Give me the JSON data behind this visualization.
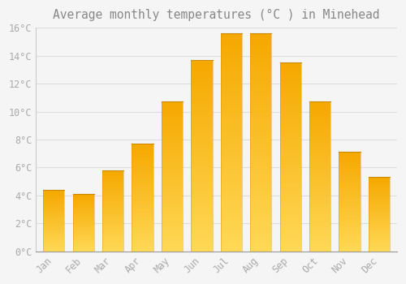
{
  "title": "Average monthly temperatures (°C ) in Minehead",
  "months": [
    "Jan",
    "Feb",
    "Mar",
    "Apr",
    "May",
    "Jun",
    "Jul",
    "Aug",
    "Sep",
    "Oct",
    "Nov",
    "Dec"
  ],
  "values": [
    4.4,
    4.1,
    5.8,
    7.7,
    10.7,
    13.7,
    15.6,
    15.6,
    13.5,
    10.7,
    7.1,
    5.3
  ],
  "bar_color_top": "#F5A800",
  "bar_color_bottom": "#FFD855",
  "background_color": "#F5F5F5",
  "grid_color": "#DDDDDD",
  "text_color": "#AAAAAA",
  "title_color": "#888888",
  "ylim": [
    0,
    16
  ],
  "yticks": [
    0,
    2,
    4,
    6,
    8,
    10,
    12,
    14,
    16
  ],
  "title_fontsize": 10.5,
  "tick_fontsize": 8.5,
  "font_family": "monospace",
  "bar_width": 0.72,
  "figsize": [
    5.0,
    3.5
  ],
  "dpi": 100
}
